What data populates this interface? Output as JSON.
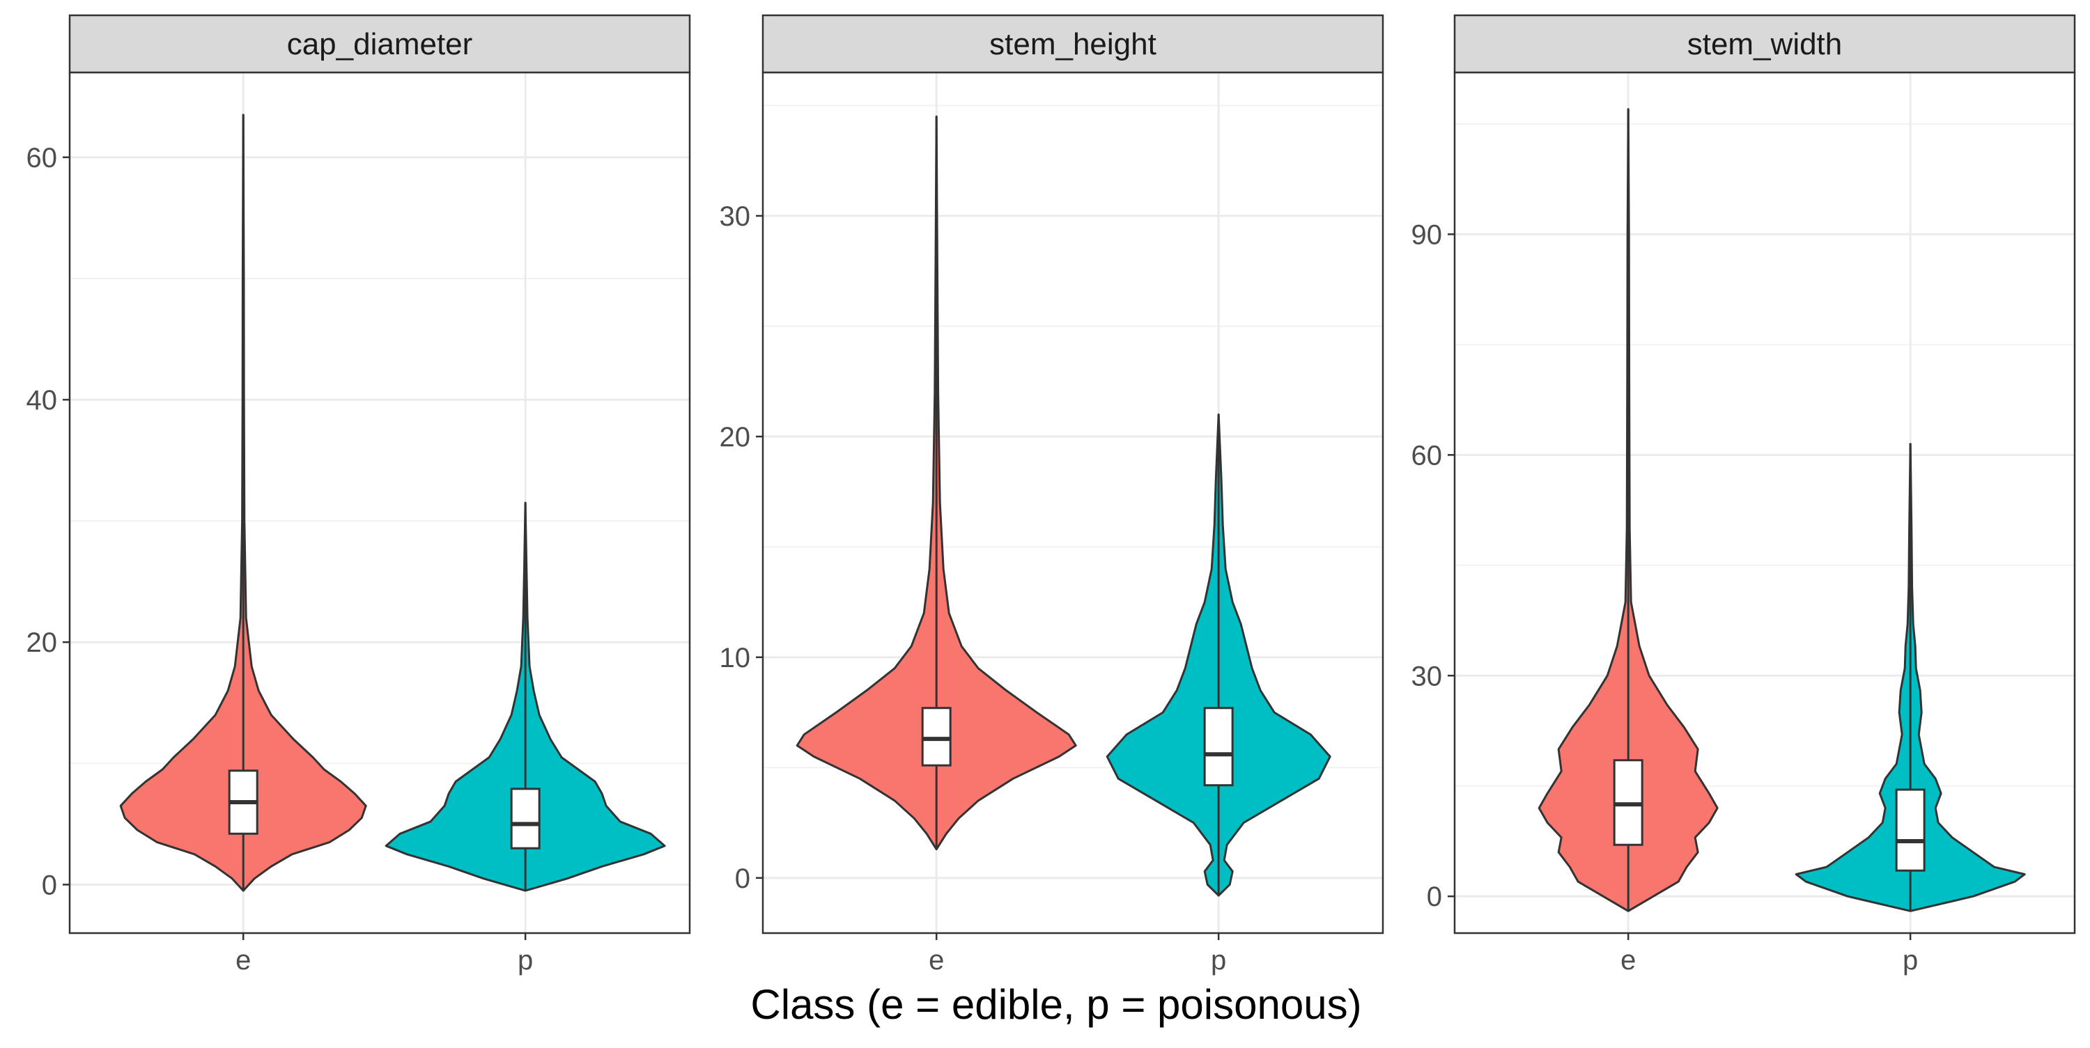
{
  "chart_data": {
    "type": "violin",
    "xlabel": "Class (e = edible, p = poisonous)",
    "ylabel": "",
    "classes": [
      "e",
      "p"
    ],
    "colors": {
      "e": "#F8766D",
      "p": "#00BFC4"
    },
    "grid": true,
    "legend": "none",
    "panels": [
      {
        "name": "cap_diameter",
        "ylim": [
          -4,
          67
        ],
        "yticks": [
          0,
          20,
          40,
          60
        ],
        "ytick_labels": [
          "0",
          "20",
          "40",
          "60"
        ],
        "violins": [
          {
            "class": "e",
            "min": -0.5,
            "max": 63.5,
            "box": {
              "q1": 4.2,
              "median": 6.8,
              "q3": 9.4
            },
            "density": [
              [
                -0.5,
                0.0
              ],
              [
                0.5,
                0.08
              ],
              [
                1.5,
                0.2
              ],
              [
                2.5,
                0.35
              ],
              [
                3.5,
                0.62
              ],
              [
                4.5,
                0.76
              ],
              [
                5.5,
                0.85
              ],
              [
                6.5,
                0.88
              ],
              [
                7.5,
                0.8
              ],
              [
                8.5,
                0.7
              ],
              [
                9.5,
                0.58
              ],
              [
                10.5,
                0.5
              ],
              [
                12,
                0.36
              ],
              [
                14,
                0.2
              ],
              [
                16,
                0.11
              ],
              [
                18,
                0.06
              ],
              [
                22,
                0.02
              ],
              [
                30,
                0.008
              ],
              [
                40,
                0.005
              ],
              [
                50,
                0.004
              ],
              [
                63.5,
                0.0
              ]
            ]
          },
          {
            "class": "p",
            "min": -0.5,
            "max": 31.5,
            "box": {
              "q1": 3.0,
              "median": 5.0,
              "q3": 7.9
            },
            "density": [
              [
                -0.5,
                0.0
              ],
              [
                0.5,
                0.3
              ],
              [
                1.5,
                0.55
              ],
              [
                2.5,
                0.85
              ],
              [
                3.2,
                1.0
              ],
              [
                4.2,
                0.9
              ],
              [
                5.2,
                0.68
              ],
              [
                6.5,
                0.58
              ],
              [
                7.5,
                0.55
              ],
              [
                8.5,
                0.5
              ],
              [
                9.5,
                0.38
              ],
              [
                10.5,
                0.26
              ],
              [
                12,
                0.18
              ],
              [
                14,
                0.1
              ],
              [
                16,
                0.06
              ],
              [
                18,
                0.03
              ],
              [
                22,
                0.015
              ],
              [
                26,
                0.008
              ],
              [
                31.5,
                0.0
              ]
            ]
          }
        ]
      },
      {
        "name": "stem_height",
        "ylim": [
          -2.5,
          36.5
        ],
        "yticks": [
          0,
          10,
          20,
          30
        ],
        "ytick_labels": [
          "0",
          "10",
          "20",
          "30"
        ],
        "violins": [
          {
            "class": "e",
            "min": 1.3,
            "max": 34.5,
            "box": {
              "q1": 5.1,
              "median": 6.3,
              "q3": 7.7
            },
            "density": [
              [
                1.3,
                0.0
              ],
              [
                2.0,
                0.07
              ],
              [
                2.7,
                0.16
              ],
              [
                3.5,
                0.3
              ],
              [
                4.5,
                0.55
              ],
              [
                5.5,
                0.88
              ],
              [
                6.0,
                1.0
              ],
              [
                6.5,
                0.95
              ],
              [
                7.5,
                0.72
              ],
              [
                8.5,
                0.5
              ],
              [
                9.5,
                0.3
              ],
              [
                10.5,
                0.18
              ],
              [
                12,
                0.09
              ],
              [
                14,
                0.05
              ],
              [
                17,
                0.025
              ],
              [
                22,
                0.012
              ],
              [
                28,
                0.006
              ],
              [
                34.5,
                0.0
              ]
            ]
          },
          {
            "class": "p",
            "min": -0.8,
            "max": 21.0,
            "box": {
              "q1": 4.2,
              "median": 5.6,
              "q3": 7.7
            },
            "density": [
              [
                -0.8,
                0.0
              ],
              [
                -0.3,
                0.08
              ],
              [
                0.3,
                0.1
              ],
              [
                0.8,
                0.04
              ],
              [
                1.5,
                0.06
              ],
              [
                2.5,
                0.18
              ],
              [
                3.5,
                0.45
              ],
              [
                4.5,
                0.72
              ],
              [
                5.5,
                0.8
              ],
              [
                6.5,
                0.66
              ],
              [
                7.5,
                0.4
              ],
              [
                8.5,
                0.3
              ],
              [
                9.5,
                0.24
              ],
              [
                10.5,
                0.2
              ],
              [
                11.5,
                0.16
              ],
              [
                12.5,
                0.1
              ],
              [
                14,
                0.05
              ],
              [
                16,
                0.03
              ],
              [
                18,
                0.02
              ],
              [
                21,
                0.0
              ]
            ]
          }
        ]
      },
      {
        "name": "stem_width",
        "ylim": [
          -5,
          112
        ],
        "yticks": [
          0,
          30,
          60,
          90
        ],
        "ytick_labels": [
          "0",
          "30",
          "60",
          "90"
        ],
        "violins": [
          {
            "class": "e",
            "min": -2,
            "max": 107,
            "box": {
              "q1": 7,
              "median": 12.5,
              "q3": 18.5
            },
            "density": [
              [
                -2,
                0.0
              ],
              [
                0,
                0.18
              ],
              [
                2,
                0.36
              ],
              [
                4,
                0.42
              ],
              [
                6,
                0.5
              ],
              [
                8,
                0.48
              ],
              [
                10,
                0.58
              ],
              [
                12,
                0.64
              ],
              [
                14,
                0.58
              ],
              [
                17,
                0.48
              ],
              [
                20,
                0.5
              ],
              [
                23,
                0.4
              ],
              [
                26,
                0.28
              ],
              [
                30,
                0.15
              ],
              [
                34,
                0.08
              ],
              [
                36,
                0.06
              ],
              [
                40,
                0.02
              ],
              [
                50,
                0.01
              ],
              [
                70,
                0.007
              ],
              [
                90,
                0.005
              ],
              [
                107,
                0.0
              ]
            ]
          },
          {
            "class": "p",
            "min": -2,
            "max": 61.5,
            "box": {
              "q1": 3.5,
              "median": 7.5,
              "q3": 14.5
            },
            "density": [
              [
                -2,
                0.0
              ],
              [
                0,
                0.45
              ],
              [
                2,
                0.75
              ],
              [
                3,
                0.82
              ],
              [
                4,
                0.6
              ],
              [
                6,
                0.45
              ],
              [
                8,
                0.3
              ],
              [
                10,
                0.2
              ],
              [
                12,
                0.18
              ],
              [
                14,
                0.22
              ],
              [
                16,
                0.18
              ],
              [
                18,
                0.1
              ],
              [
                20,
                0.08
              ],
              [
                22,
                0.06
              ],
              [
                25,
                0.08
              ],
              [
                28,
                0.07
              ],
              [
                31,
                0.04
              ],
              [
                34,
                0.035
              ],
              [
                37,
                0.02
              ],
              [
                42,
                0.012
              ],
              [
                50,
                0.008
              ],
              [
                61.5,
                0.0
              ]
            ]
          }
        ]
      }
    ]
  }
}
